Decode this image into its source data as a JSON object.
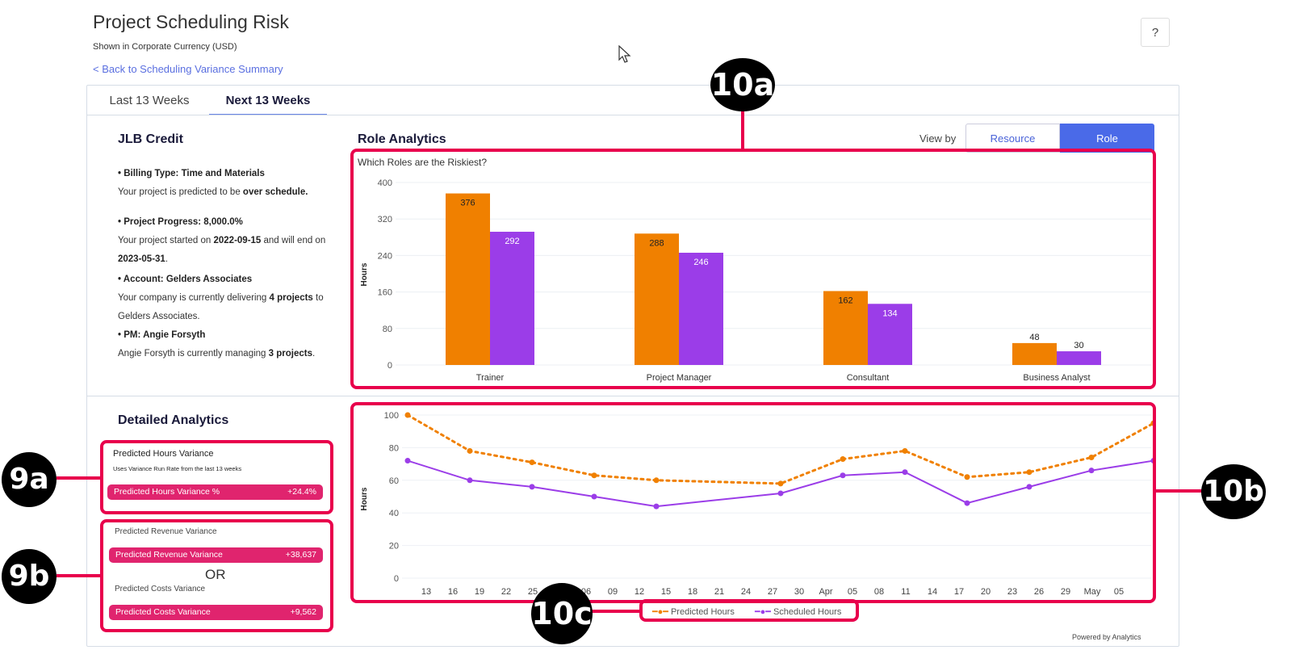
{
  "header": {
    "title": "Project Scheduling Risk",
    "subtitle": "Shown in Corporate Currency (USD)",
    "back_link": "< Back to Scheduling Variance Summary",
    "help": "?"
  },
  "tabs": [
    {
      "label": "Last 13 Weeks",
      "active": false
    },
    {
      "label": "Next 13 Weeks",
      "active": true
    }
  ],
  "project": {
    "name": "JLB Credit",
    "billing_label": "• Billing Type: Time and Materials",
    "billing_text": "Your project is predicted to be ",
    "billing_bold": "over schedule.",
    "progress_label": "• Project Progress: 8,000.0%",
    "progress_t1": "Your project started on ",
    "progress_start": "2022-09-15",
    "progress_t2": " and will end on ",
    "progress_end": "2023-05-31",
    "progress_t3": ".",
    "account_label": "• Account: Gelders Associates",
    "account_t1": "Your company is currently delivering ",
    "account_bold": "4 projects",
    "account_t2": " to Gelders Associates.",
    "pm_label": "• PM: Angie Forsyth",
    "pm_t1": "Angie Forsyth is currently managing ",
    "pm_bold": "3 projects",
    "pm_t2": "."
  },
  "role_analytics": {
    "title": "Role Analytics",
    "view_by": "View by",
    "buttons": [
      "Resource",
      "Role"
    ],
    "selected": "Role",
    "question": "Which Roles are the Riskiest?"
  },
  "detailed": {
    "title": "Detailed Analytics",
    "hours_card": {
      "title": "Predicted Hours Variance",
      "note": "Uses Variance Run Rate from the last 13 weeks",
      "pill_label": "Predicted Hours Variance %",
      "pill_value": "+24.4%"
    },
    "revenue_card": {
      "title": "Predicted Revenue Variance",
      "pill_label": "Predicted Revenue Variance",
      "pill_value": "+38,637",
      "or": "OR",
      "cost_title": "Predicted Costs Variance",
      "cost_pill_label": "Predicted Costs Variance",
      "cost_pill_value": "+9,562"
    }
  },
  "powered_by": "Powered by Analytics",
  "annotations": [
    "10a",
    "9a",
    "9b",
    "10b",
    "10c"
  ],
  "colors": {
    "predicted": "#f08000",
    "scheduled": "#9b3de8",
    "accent": "#4a6ae8",
    "pill": "#e0246e",
    "highlight": "#e8004c"
  },
  "chart_data": [
    {
      "type": "bar",
      "title": "Which Roles are the Riskiest?",
      "ylabel": "Hours",
      "ylim": [
        0,
        400
      ],
      "yticks": [
        0,
        80,
        160,
        240,
        320,
        400
      ],
      "categories": [
        "Trainer",
        "Project Manager",
        "Consultant",
        "Business Analyst"
      ],
      "series": [
        {
          "values": [
            376,
            288,
            162,
            48
          ],
          "color": "#f08000"
        },
        {
          "values": [
            292,
            246,
            134,
            30
          ],
          "color": "#9b3de8"
        }
      ],
      "grid": true
    },
    {
      "type": "line",
      "ylabel": "Hours",
      "ylim": [
        0,
        100
      ],
      "yticks": [
        0,
        20,
        40,
        60,
        80,
        100
      ],
      "xticks": [
        "13",
        "16",
        "19",
        "22",
        "25",
        "Mar",
        "06",
        "09",
        "12",
        "15",
        "18",
        "21",
        "24",
        "27",
        "30",
        "Apr",
        "05",
        "08",
        "11",
        "14",
        "17",
        "20",
        "23",
        "26",
        "29",
        "May",
        "05"
      ],
      "x": [
        "2023-02-11",
        "2023-02-18",
        "2023-02-25",
        "2023-03-04",
        "2023-03-11",
        "2023-03-25",
        "2023-04-01",
        "2023-04-08",
        "2023-04-15",
        "2023-04-22",
        "2023-04-29",
        "2023-05-06"
      ],
      "series": [
        {
          "name": "Predicted Hours",
          "values": [
            100,
            78,
            71,
            63,
            60,
            58,
            73,
            78,
            62,
            65,
            74,
            95
          ],
          "color": "#f08000",
          "style": "dotted"
        },
        {
          "name": "Scheduled Hours",
          "values": [
            72,
            60,
            56,
            50,
            44,
            52,
            63,
            65,
            46,
            56,
            66,
            72
          ],
          "color": "#9b3de8",
          "style": "solid"
        }
      ],
      "legend": "bottom",
      "grid": true
    }
  ]
}
